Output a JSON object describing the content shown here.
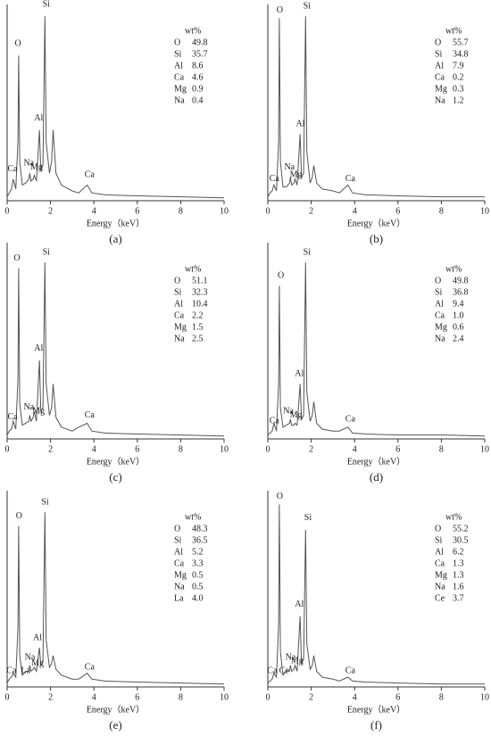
{
  "chart_data": [
    {
      "type": "line",
      "caption": "(a)",
      "xlabel": "Energy（keV）",
      "xlim": [
        0,
        10
      ],
      "ylim": [
        0,
        100
      ],
      "xticks": [
        0,
        2,
        4,
        6,
        8,
        10
      ],
      "color": "#555555",
      "x": [
        0,
        0.1,
        0.2,
        0.28,
        0.4,
        0.5,
        0.53,
        0.58,
        0.7,
        0.85,
        1.0,
        1.04,
        1.1,
        1.2,
        1.25,
        1.35,
        1.49,
        1.55,
        1.65,
        1.74,
        1.8,
        1.95,
        2.05,
        2.12,
        2.25,
        2.5,
        3.0,
        3.3,
        3.69,
        3.9,
        4.5,
        6,
        8,
        10
      ],
      "values": [
        2,
        4,
        6,
        11,
        6,
        30,
        74,
        20,
        8,
        9,
        11,
        14,
        10,
        11,
        13,
        10,
        36,
        15,
        18,
        94,
        30,
        14,
        20,
        36,
        14,
        8,
        5,
        4,
        8,
        4,
        3,
        2.5,
        2,
        1.5
      ],
      "peak_labels": [
        {
          "text": "O",
          "x": 0.5,
          "y": 80
        },
        {
          "text": "Si",
          "x": 1.8,
          "y": 100
        },
        {
          "text": "Al",
          "x": 1.45,
          "y": 42
        },
        {
          "text": "Na",
          "x": 1.0,
          "y": 19
        },
        {
          "text": "Mg",
          "x": 1.35,
          "y": 17
        },
        {
          "text": "Ca",
          "x": 0.25,
          "y": 16
        },
        {
          "text": "Ca",
          "x": 3.8,
          "y": 13
        }
      ],
      "composition": {
        "header": "wt%",
        "rows": [
          [
            "O",
            "49.8"
          ],
          [
            "Si",
            "35.7"
          ],
          [
            "Al",
            "8.6"
          ],
          [
            "Ca",
            "4.6"
          ],
          [
            "Mg",
            "0.9"
          ],
          [
            "Na",
            "0.4"
          ]
        ]
      }
    },
    {
      "type": "line",
      "caption": "(b)",
      "xlabel": "Energy（keV）",
      "xlim": [
        0,
        10
      ],
      "ylim": [
        0,
        100
      ],
      "xticks": [
        0,
        2,
        4,
        6,
        8,
        10
      ],
      "color": "#555555",
      "x": [
        0,
        0.1,
        0.2,
        0.28,
        0.4,
        0.5,
        0.53,
        0.58,
        0.7,
        0.85,
        1.0,
        1.04,
        1.1,
        1.2,
        1.25,
        1.35,
        1.49,
        1.55,
        1.65,
        1.74,
        1.8,
        1.95,
        2.05,
        2.12,
        2.25,
        2.5,
        3.0,
        3.3,
        3.69,
        3.9,
        4.5,
        6,
        8,
        10
      ],
      "values": [
        2,
        4,
        5,
        8,
        5,
        30,
        93,
        20,
        7,
        7,
        9,
        12,
        8,
        9,
        11,
        8,
        34,
        12,
        14,
        94,
        25,
        9,
        12,
        18,
        9,
        6,
        5,
        4,
        8,
        4,
        3,
        2.5,
        2,
        2
      ],
      "peak_labels": [
        {
          "text": "O",
          "x": 0.55,
          "y": 97
        },
        {
          "text": "Si",
          "x": 1.8,
          "y": 99
        },
        {
          "text": "Al",
          "x": 1.5,
          "y": 39
        },
        {
          "text": "Na",
          "x": 1.0,
          "y": 17
        },
        {
          "text": "Mg",
          "x": 1.3,
          "y": 13
        },
        {
          "text": "Ca",
          "x": 0.3,
          "y": 11
        },
        {
          "text": "Ca",
          "x": 3.8,
          "y": 11
        }
      ],
      "composition": {
        "header": "wt%",
        "rows": [
          [
            "O",
            "55.7"
          ],
          [
            "Si",
            "34.8"
          ],
          [
            "Al",
            "7.9"
          ],
          [
            "Ca",
            "0.2"
          ],
          [
            "Mg",
            "0.3"
          ],
          [
            "Na",
            "1.2"
          ]
        ]
      }
    },
    {
      "type": "line",
      "caption": "(c)",
      "xlabel": "Energy（keV）",
      "xlim": [
        0,
        10
      ],
      "ylim": [
        0,
        100
      ],
      "xticks": [
        0,
        2,
        4,
        6,
        8,
        10
      ],
      "color": "#555555",
      "x": [
        0,
        0.1,
        0.2,
        0.28,
        0.4,
        0.5,
        0.53,
        0.58,
        0.7,
        0.85,
        1.0,
        1.04,
        1.1,
        1.2,
        1.25,
        1.35,
        1.49,
        1.55,
        1.65,
        1.74,
        1.8,
        1.95,
        2.05,
        2.12,
        2.25,
        2.5,
        3.0,
        3.3,
        3.69,
        3.9,
        4.5,
        6,
        8,
        10
      ],
      "values": [
        2,
        4,
        5,
        9,
        5,
        30,
        87,
        18,
        7,
        8,
        9,
        12,
        9,
        11,
        14,
        9,
        40,
        14,
        16,
        90,
        28,
        12,
        16,
        28,
        11,
        6,
        4,
        6,
        8,
        4,
        3,
        2.5,
        2,
        1.5
      ],
      "peak_labels": [
        {
          "text": "O",
          "x": 0.45,
          "y": 92
        },
        {
          "text": "Si",
          "x": 1.8,
          "y": 95
        },
        {
          "text": "Al",
          "x": 1.45,
          "y": 46
        },
        {
          "text": "Na",
          "x": 1.0,
          "y": 16
        },
        {
          "text": "Mg",
          "x": 1.45,
          "y": 14
        },
        {
          "text": "Ca",
          "x": 0.25,
          "y": 11
        },
        {
          "text": "Ca",
          "x": 3.8,
          "y": 12
        }
      ],
      "composition": {
        "header": "wt%",
        "rows": [
          [
            "O",
            "51.1"
          ],
          [
            "Si",
            "32.3"
          ],
          [
            "Al",
            "10.4"
          ],
          [
            "Ca",
            "2.2"
          ],
          [
            "Mg",
            "1.5"
          ],
          [
            "Na",
            "2.5"
          ]
        ]
      }
    },
    {
      "type": "line",
      "caption": "(d)",
      "xlabel": "Energy（keV）",
      "xlim": [
        0,
        10
      ],
      "ylim": [
        0,
        100
      ],
      "xticks": [
        0,
        2,
        4,
        6,
        8,
        10
      ],
      "color": "#555555",
      "x": [
        0,
        0.1,
        0.2,
        0.28,
        0.4,
        0.5,
        0.53,
        0.58,
        0.7,
        0.85,
        1.0,
        1.04,
        1.1,
        1.2,
        1.25,
        1.35,
        1.49,
        1.55,
        1.65,
        1.74,
        1.8,
        1.95,
        2.05,
        2.12,
        2.25,
        2.5,
        3.0,
        3.3,
        3.69,
        3.9,
        4.5,
        6,
        8,
        10
      ],
      "values": [
        2,
        3,
        4,
        8,
        4,
        28,
        78,
        16,
        6,
        7,
        8,
        10,
        7,
        7,
        8,
        7,
        28,
        10,
        12,
        90,
        24,
        9,
        12,
        19,
        8,
        5,
        4,
        4,
        6,
        3,
        2.5,
        2,
        2,
        1.5
      ],
      "peak_labels": [
        {
          "text": "O",
          "x": 0.6,
          "y": 83
        },
        {
          "text": "Si",
          "x": 1.8,
          "y": 95
        },
        {
          "text": "Al",
          "x": 1.45,
          "y": 33
        },
        {
          "text": "Na",
          "x": 0.95,
          "y": 14
        },
        {
          "text": "Mg",
          "x": 1.3,
          "y": 12
        },
        {
          "text": "Ca",
          "x": 0.3,
          "y": 9
        },
        {
          "text": "Ca",
          "x": 3.8,
          "y": 10
        }
      ],
      "composition": {
        "header": "wt%",
        "rows": [
          [
            "O",
            "49.8"
          ],
          [
            "Si",
            "36.8"
          ],
          [
            "Al",
            "9.4"
          ],
          [
            "Ca",
            "1.0"
          ],
          [
            "Mg",
            "0.6"
          ],
          [
            "Na",
            "2.4"
          ]
        ]
      }
    },
    {
      "type": "line",
      "caption": "(e)",
      "xlabel": "Energy（keV）",
      "xlim": [
        0,
        10
      ],
      "ylim": [
        0,
        100
      ],
      "xticks": [
        0,
        2,
        4,
        6,
        8,
        10
      ],
      "color": "#555555",
      "x": [
        0,
        0.1,
        0.2,
        0.28,
        0.4,
        0.5,
        0.53,
        0.58,
        0.7,
        0.85,
        1.0,
        1.04,
        1.1,
        1.2,
        1.25,
        1.35,
        1.49,
        1.55,
        1.65,
        1.74,
        1.8,
        1.95,
        2.05,
        2.12,
        2.25,
        2.5,
        3.0,
        3.3,
        3.69,
        3.9,
        4.5,
        6,
        8,
        10
      ],
      "values": [
        2,
        4,
        5,
        7,
        5,
        30,
        82,
        16,
        6,
        8,
        8,
        11,
        8,
        9,
        10,
        8,
        20,
        11,
        13,
        89,
        24,
        10,
        12,
        16,
        9,
        6,
        4,
        4,
        7,
        4,
        3,
        2.5,
        2,
        1.5
      ],
      "peak_labels": [
        {
          "text": "O",
          "x": 0.55,
          "y": 87
        },
        {
          "text": "Si",
          "x": 1.75,
          "y": 94
        },
        {
          "text": "Al",
          "x": 1.4,
          "y": 25
        },
        {
          "text": "Na",
          "x": 1.05,
          "y": 15
        },
        {
          "text": "Mg",
          "x": 1.4,
          "y": 12
        },
        {
          "text": "Ca",
          "x": 0.2,
          "y": 8
        },
        {
          "text": "La",
          "x": 0.85,
          "y": 8
        },
        {
          "text": "Ca",
          "x": 3.8,
          "y": 10
        }
      ],
      "composition": {
        "header": "wt%",
        "rows": [
          [
            "O",
            "48.3"
          ],
          [
            "Si",
            "36.5"
          ],
          [
            "Al",
            "5.2"
          ],
          [
            "Ca",
            "3.3"
          ],
          [
            "Mg",
            "0.5"
          ],
          [
            "Na",
            "0.5"
          ],
          [
            "La",
            "4.0"
          ]
        ]
      }
    },
    {
      "type": "line",
      "caption": "(f)",
      "xlabel": "Energy（keV）",
      "xlim": [
        0,
        10
      ],
      "ylim": [
        0,
        100
      ],
      "xticks": [
        0,
        2,
        4,
        6,
        8,
        10
      ],
      "color": "#555555",
      "x": [
        0,
        0.1,
        0.2,
        0.28,
        0.4,
        0.5,
        0.53,
        0.58,
        0.7,
        0.85,
        1.0,
        1.04,
        1.1,
        1.2,
        1.25,
        1.35,
        1.49,
        1.55,
        1.65,
        1.74,
        1.8,
        1.95,
        2.05,
        2.12,
        2.25,
        2.5,
        3.0,
        3.3,
        3.69,
        3.9,
        4.5,
        6,
        8,
        10
      ],
      "values": [
        2,
        3,
        4,
        7,
        5,
        32,
        93,
        18,
        6,
        8,
        8,
        11,
        8,
        9,
        11,
        8,
        36,
        12,
        14,
        80,
        22,
        9,
        11,
        16,
        8,
        5,
        4,
        3,
        5,
        3,
        2.5,
        2,
        1.5,
        1.5
      ],
      "peak_labels": [
        {
          "text": "O",
          "x": 0.55,
          "y": 97
        },
        {
          "text": "Si",
          "x": 1.85,
          "y": 86
        },
        {
          "text": "Al",
          "x": 1.45,
          "y": 42
        },
        {
          "text": "Na",
          "x": 1.05,
          "y": 15
        },
        {
          "text": "Mg",
          "x": 1.35,
          "y": 13
        },
        {
          "text": "Ca",
          "x": 0.2,
          "y": 8
        },
        {
          "text": "Ce",
          "x": 0.75,
          "y": 8
        },
        {
          "text": "Ca",
          "x": 3.8,
          "y": 8
        }
      ],
      "composition": {
        "header": "wt%",
        "rows": [
          [
            "O",
            "55.2"
          ],
          [
            "Si",
            "30.5"
          ],
          [
            "Al",
            "6.2"
          ],
          [
            "Ca",
            "1.3"
          ],
          [
            "Mg",
            "1.3"
          ],
          [
            "Na",
            "1.6"
          ],
          [
            "Ce",
            "3.7"
          ]
        ]
      }
    }
  ]
}
